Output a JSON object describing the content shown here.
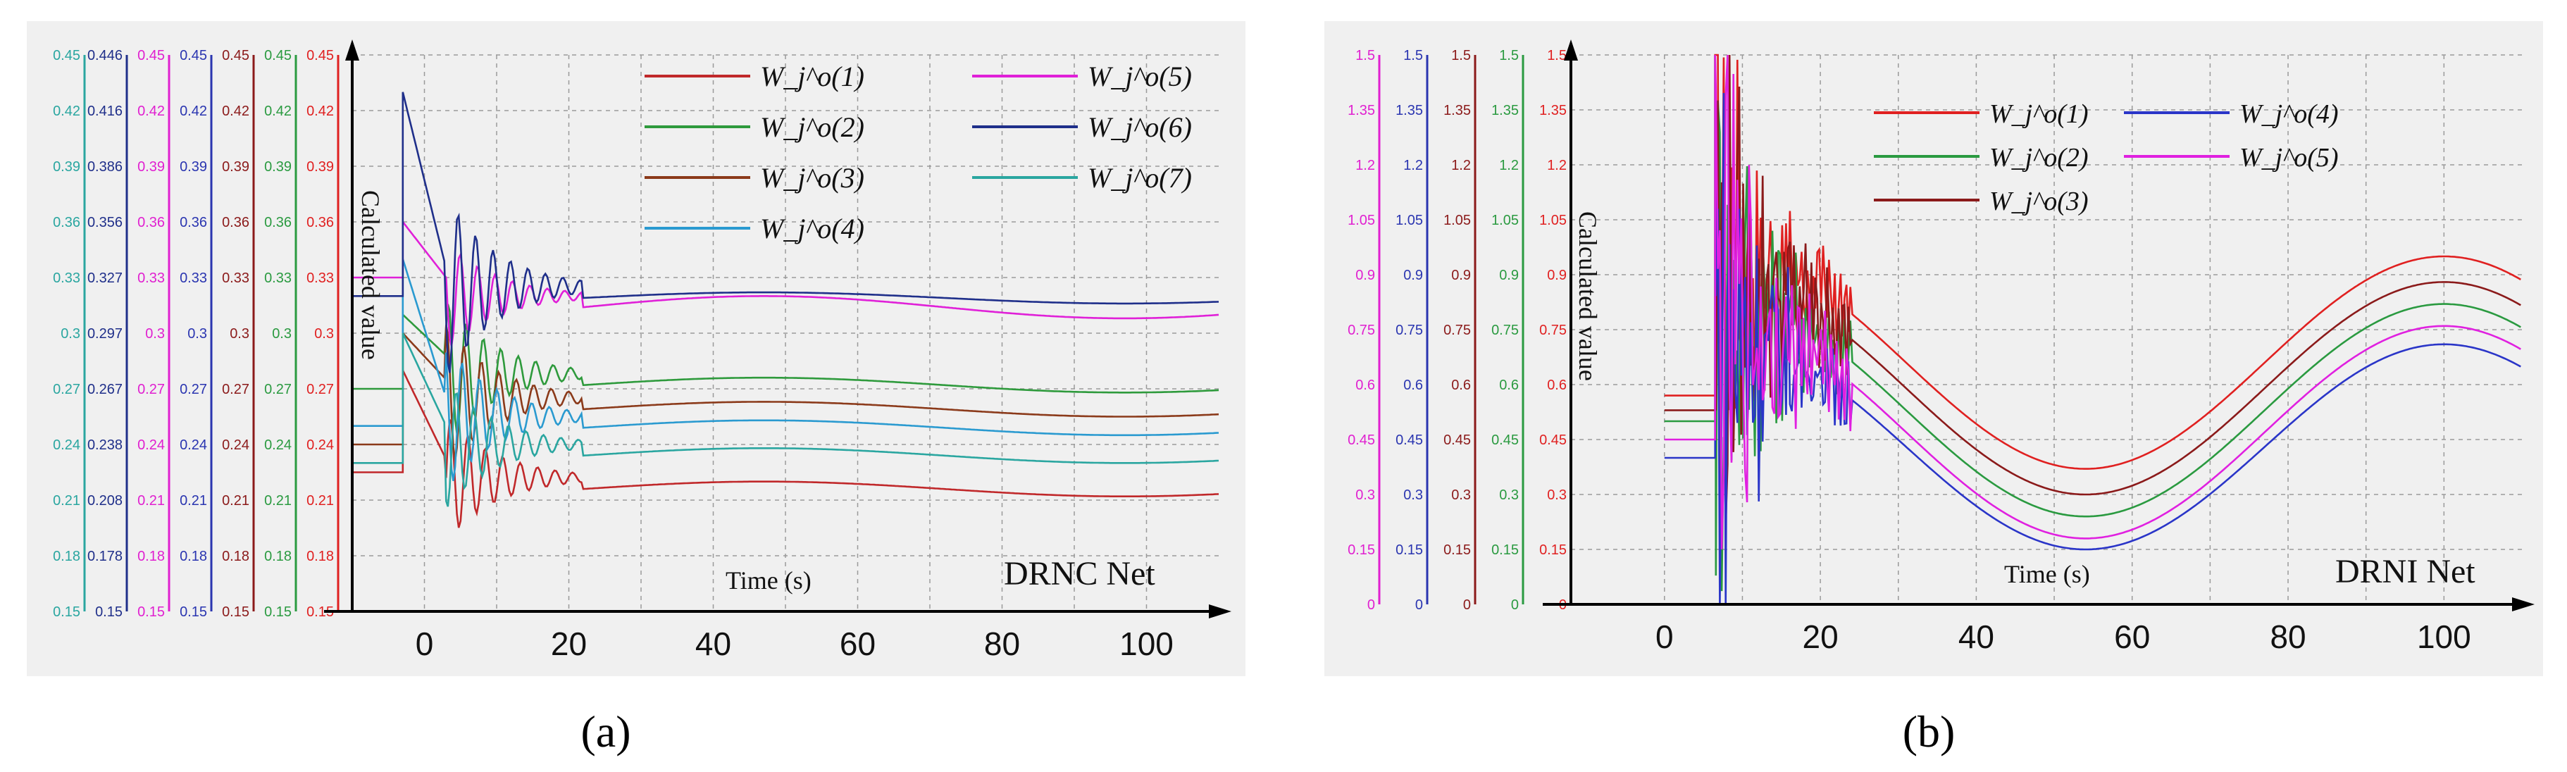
{
  "chart_data": [
    {
      "type": "line",
      "panel_label": "(a)",
      "title": "DRNC Net",
      "xlabel": "Time (s)",
      "ylabel": "Calculated value",
      "xlim": [
        -10,
        110
      ],
      "xticks": [
        "0",
        "20",
        "40",
        "60",
        "80",
        "100"
      ],
      "xtick_values": [
        0,
        20,
        40,
        60,
        80,
        100
      ],
      "ylim": [
        0.15,
        0.45
      ],
      "axes": [
        {
          "name": "axis-w7",
          "color": "#2aa6a0",
          "min": 0.15,
          "max": 0.45,
          "ticks": [
            "0.15",
            "0.18",
            "0.21",
            "0.24",
            "0.27",
            "0.3",
            "0.33",
            "0.36",
            "0.39",
            "0.42",
            "0.45"
          ]
        },
        {
          "name": "axis-w6",
          "color": "#1f2f8a",
          "min": 0.15,
          "max": 0.446,
          "ticks": [
            "0.15",
            "0.178",
            "0.208",
            "0.238",
            "0.267",
            "0.297",
            "0.327",
            "0.356",
            "0.386",
            "0.416",
            "0.446"
          ]
        },
        {
          "name": "axis-w5",
          "color": "#e020d0",
          "min": 0.15,
          "max": 0.45,
          "ticks": [
            "0.15",
            "0.18",
            "0.21",
            "0.24",
            "0.27",
            "0.3",
            "0.33",
            "0.36",
            "0.39",
            "0.42",
            "0.45"
          ]
        },
        {
          "name": "axis-w4",
          "color": "#2a35b0",
          "min": 0.15,
          "max": 0.45,
          "ticks": [
            "0.15",
            "0.18",
            "0.21",
            "0.24",
            "0.27",
            "0.3",
            "0.33",
            "0.36",
            "0.39",
            "0.42",
            "0.45"
          ]
        },
        {
          "name": "axis-w3",
          "color": "#8b1a1a",
          "min": 0.15,
          "max": 0.45,
          "ticks": [
            "0.15",
            "0.18",
            "0.21",
            "0.24",
            "0.27",
            "0.3",
            "0.33",
            "0.36",
            "0.39",
            "0.42",
            "0.45"
          ]
        },
        {
          "name": "axis-w2",
          "color": "#2a9a40",
          "min": 0.15,
          "max": 0.45,
          "ticks": [
            "0.15",
            "0.18",
            "0.21",
            "0.24",
            "0.27",
            "0.3",
            "0.33",
            "0.36",
            "0.39",
            "0.42",
            "0.45"
          ]
        },
        {
          "name": "axis-w1",
          "color": "#e02020",
          "min": 0.15,
          "max": 0.45,
          "ticks": [
            "0.15",
            "0.18",
            "0.21",
            "0.24",
            "0.27",
            "0.3",
            "0.33",
            "0.36",
            "0.39",
            "0.42",
            "0.45"
          ]
        }
      ],
      "legend_position": "top-right",
      "legend_columns": 2,
      "series": [
        {
          "name": "W_j^o(1)",
          "color": "#c0282a",
          "init": 0.225,
          "peak": 0.28,
          "final": 0.212,
          "amp": 0.035,
          "drift": 0.004
        },
        {
          "name": "W_j^o(2)",
          "color": "#2e9a3c",
          "init": 0.27,
          "peak": 0.31,
          "final": 0.268,
          "amp": 0.04,
          "drift": 0.004
        },
        {
          "name": "W_j^o(3)",
          "color": "#8b3a1a",
          "init": 0.24,
          "peak": 0.3,
          "final": 0.255,
          "amp": 0.04,
          "drift": 0.004
        },
        {
          "name": "W_j^o(4)",
          "color": "#2a9ad0",
          "init": 0.25,
          "peak": 0.34,
          "final": 0.245,
          "amp": 0.04,
          "drift": 0.004
        },
        {
          "name": "W_j^o(5)",
          "color": "#e020d8",
          "init": 0.33,
          "peak": 0.36,
          "final": 0.31,
          "amp": 0.03,
          "drift": 0.006
        },
        {
          "name": "W_j^o(6)",
          "color": "#1f2f8a",
          "init": 0.32,
          "peak": 0.43,
          "final": 0.315,
          "amp": 0.05,
          "drift": 0.003
        },
        {
          "name": "W_j^o(7)",
          "color": "#2aa6a0",
          "init": 0.23,
          "peak": 0.3,
          "final": 0.23,
          "amp": 0.035,
          "drift": 0.004
        }
      ]
    },
    {
      "type": "line",
      "panel_label": "(b)",
      "title": "DRNI Net",
      "xlabel": "Time (s)",
      "ylabel": "Calculated value",
      "xlim": [
        -12,
        110
      ],
      "xticks": [
        "0",
        "20",
        "40",
        "60",
        "80",
        "100"
      ],
      "xtick_values": [
        0,
        20,
        40,
        60,
        80,
        100
      ],
      "ylim": [
        0,
        1.5
      ],
      "axes": [
        {
          "name": "axis-w5",
          "color": "#e020d0",
          "min": 0,
          "max": 1.5,
          "ticks": [
            "0",
            "0.15",
            "0.3",
            "0.45",
            "0.6",
            "0.75",
            "0.9",
            "1.05",
            "1.2",
            "1.35",
            "1.5"
          ]
        },
        {
          "name": "axis-w4",
          "color": "#2a35b0",
          "min": 0,
          "max": 1.5,
          "ticks": [
            "0",
            "0.15",
            "0.3",
            "0.45",
            "0.6",
            "0.75",
            "0.9",
            "1.05",
            "1.2",
            "1.35",
            "1.5"
          ]
        },
        {
          "name": "axis-w3",
          "color": "#8b1a1a",
          "min": 0,
          "max": 1.5,
          "ticks": [
            "0",
            "0.15",
            "0.3",
            "0.45",
            "0.6",
            "0.75",
            "0.9",
            "1.05",
            "1.2",
            "1.35",
            "1.5"
          ]
        },
        {
          "name": "axis-w2",
          "color": "#2a9a40",
          "min": 0,
          "max": 1.5,
          "ticks": [
            "0",
            "0.15",
            "0.3",
            "0.45",
            "0.6",
            "0.75",
            "0.9",
            "1.05",
            "1.2",
            "1.35",
            "1.5"
          ]
        },
        {
          "name": "axis-w1",
          "color": "#e02020",
          "min": 0,
          "max": 1.5,
          "ticks": [
            "0",
            "0.15",
            "0.3",
            "0.45",
            "0.6",
            "0.75",
            "0.9",
            "1.05",
            "1.2",
            "1.35",
            "1.5"
          ]
        }
      ],
      "legend_position": "top-center",
      "legend_columns": 2,
      "series": [
        {
          "name": "W_j^o(1)",
          "color": "#e02020",
          "init": 0.57,
          "base": 0.66,
          "amp": 0.29,
          "offset": 0.0
        },
        {
          "name": "W_j^o(2)",
          "color": "#2a9a40",
          "init": 0.5,
          "base": 0.53,
          "amp": 0.29,
          "offset": -0.07
        },
        {
          "name": "W_j^o(3)",
          "color": "#8b1a1a",
          "init": 0.53,
          "base": 0.59,
          "amp": 0.29,
          "offset": -0.03
        },
        {
          "name": "W_j^o(4)",
          "color": "#2a35c8",
          "init": 0.4,
          "base": 0.43,
          "amp": 0.28,
          "offset": -0.17
        },
        {
          "name": "W_j^o(5)",
          "color": "#e020e0",
          "init": 0.45,
          "base": 0.47,
          "amp": 0.29,
          "offset": -0.12
        }
      ]
    }
  ]
}
